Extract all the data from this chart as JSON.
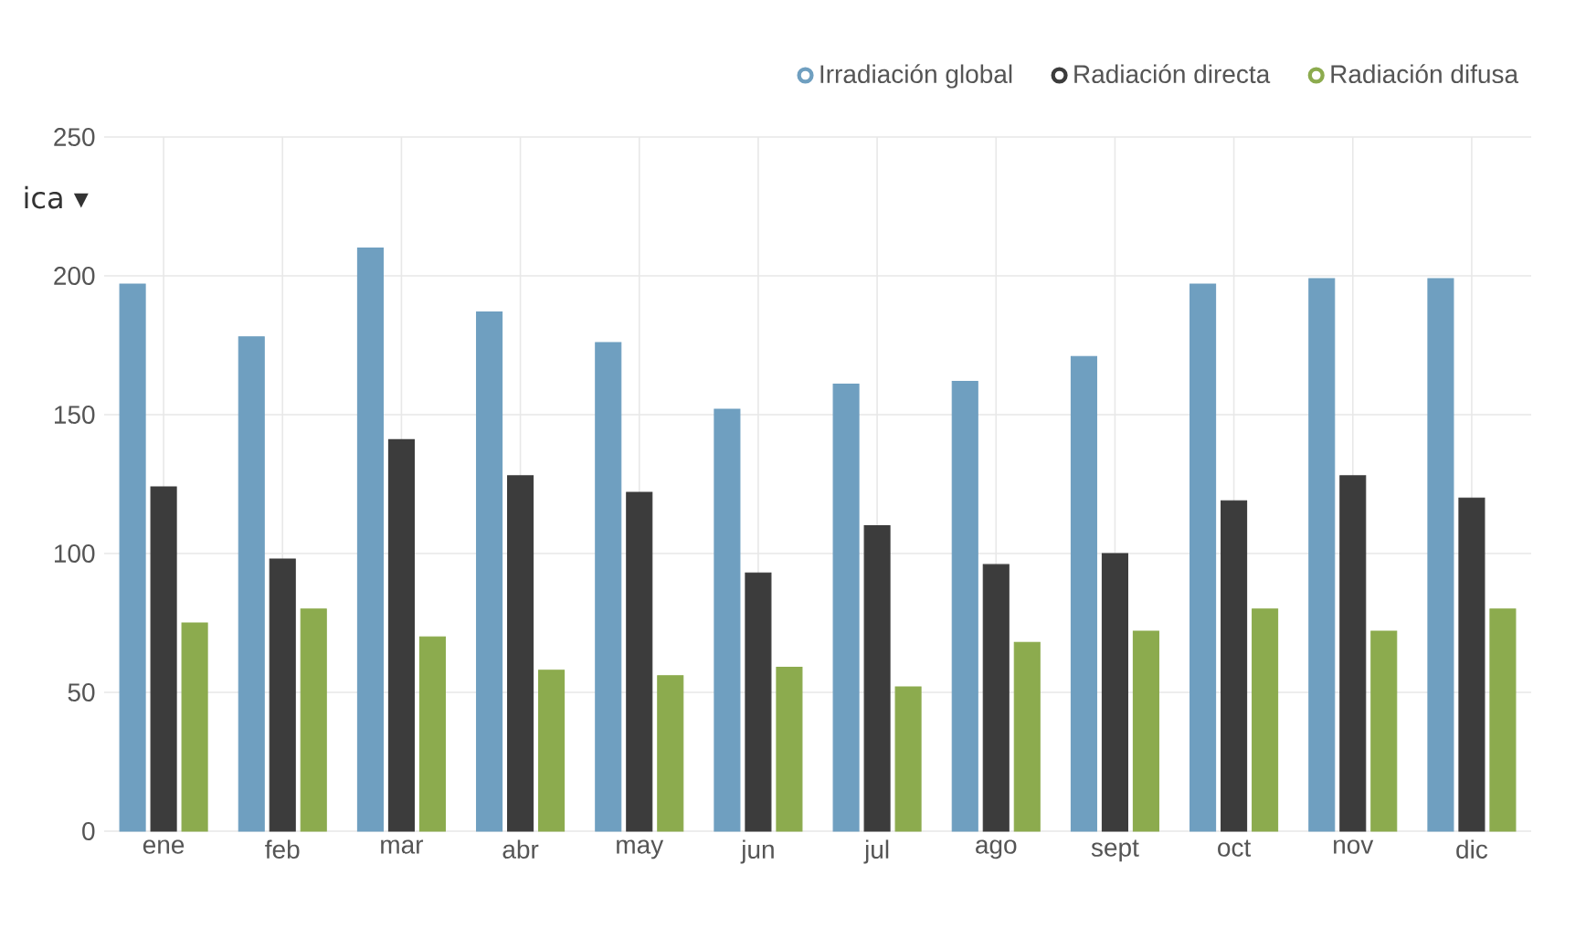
{
  "chart_data": {
    "type": "bar",
    "categories": [
      "ene",
      "feb",
      "mar",
      "abr",
      "may",
      "jun",
      "jul",
      "ago",
      "sept",
      "oct",
      "nov",
      "dic"
    ],
    "series": [
      {
        "name": "Irradiación global",
        "color": "#6f9fc0",
        "values": [
          197,
          178,
          210,
          187,
          176,
          152,
          161,
          162,
          171,
          197,
          199,
          199
        ]
      },
      {
        "name": "Radiación directa",
        "color": "#3c3c3c",
        "values": [
          124,
          98,
          141,
          128,
          122,
          93,
          110,
          96,
          100,
          119,
          128,
          120
        ]
      },
      {
        "name": "Radiación difusa",
        "color": "#8cab4e",
        "values": [
          75,
          80,
          70,
          58,
          56,
          59,
          52,
          68,
          72,
          80,
          72,
          80
        ]
      }
    ],
    "ylim": [
      0,
      250
    ],
    "yticks": [
      0,
      50,
      100,
      150,
      200,
      250
    ],
    "grid": true,
    "legend": "top right",
    "annotations": [
      "ica ▾"
    ]
  }
}
